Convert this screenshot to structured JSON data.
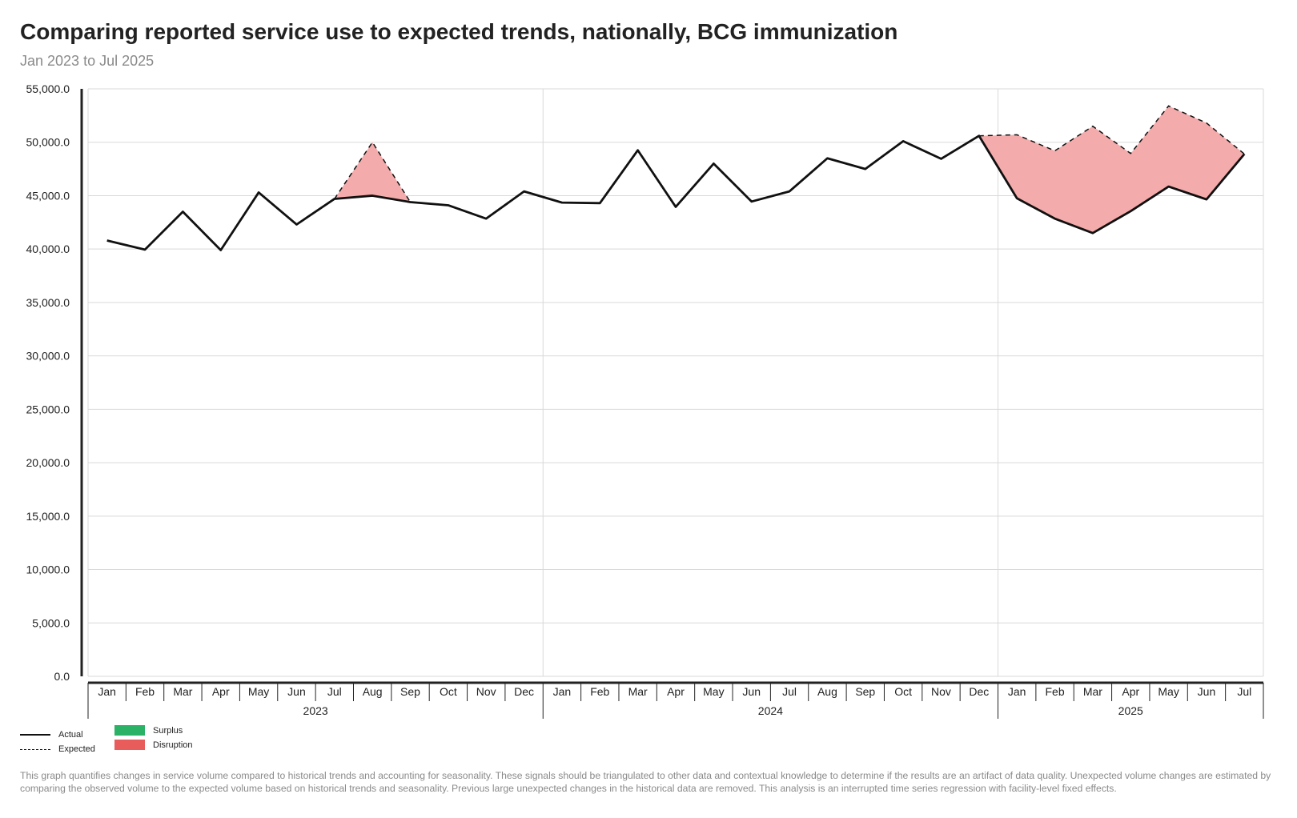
{
  "title": "Comparing reported service use to expected trends, nationally, BCG immunization",
  "subtitle": "Jan 2023 to Jul 2025",
  "legend": {
    "actual": "Actual",
    "expected": "Expected",
    "surplus": "Surplus",
    "disruption": "Disruption"
  },
  "colors": {
    "actual_line": "#111111",
    "expected_line": "#111111",
    "surplus": "#2bb266",
    "disruption": "#e85c5c",
    "disruption_fill": "#f4abab",
    "grid": "#d9d9d9"
  },
  "footnote": "This graph quantifies changes in service volume compared to historical trends and accounting for seasonality. These signals should be triangulated to other data and contextual knowledge to determine if the results are an artifact of data quality. Unexpected volume changes are estimated by comparing the observed volume to the expected volume based on historical trends and seasonality. Previous large unexpected changes in the historical data are removed. This analysis is an interrupted time series regression with facility-level fixed effects.",
  "chart_data": {
    "type": "line",
    "x": [
      "Jan",
      "Feb",
      "Mar",
      "Apr",
      "May",
      "Jun",
      "Jul",
      "Aug",
      "Sep",
      "Oct",
      "Nov",
      "Dec",
      "Jan",
      "Feb",
      "Mar",
      "Apr",
      "May",
      "Jun",
      "Jul",
      "Aug",
      "Sep",
      "Oct",
      "Nov",
      "Dec",
      "Jan",
      "Feb",
      "Mar",
      "Apr",
      "May",
      "Jun",
      "Jul"
    ],
    "x_groups": [
      {
        "label": "2023",
        "count": 12
      },
      {
        "label": "2024",
        "count": 12
      },
      {
        "label": "2025",
        "count": 7
      }
    ],
    "series": [
      {
        "name": "Actual",
        "style": "solid",
        "values": [
          40800,
          39950,
          43500,
          39900,
          45300,
          42300,
          44700,
          45000,
          44400,
          44100,
          42850,
          45400,
          44350,
          44300,
          49250,
          43950,
          48000,
          44450,
          45400,
          48500,
          47500,
          50100,
          48450,
          50600,
          44750,
          42850,
          41500,
          43550,
          45850,
          44650,
          48900
        ]
      },
      {
        "name": "Expected",
        "style": "dashed",
        "values": [
          null,
          null,
          null,
          null,
          null,
          null,
          44700,
          50000,
          44400,
          null,
          null,
          null,
          null,
          null,
          null,
          null,
          null,
          null,
          null,
          null,
          null,
          null,
          null,
          50600,
          50700,
          49200,
          51500,
          48950,
          53400,
          51800,
          48900
        ]
      }
    ],
    "disruption_ranges": [
      [
        6,
        8
      ],
      [
        23,
        30
      ]
    ],
    "y_ticks": [
      "0.0",
      "5,000.0",
      "10,000.0",
      "15,000.0",
      "20,000.0",
      "25,000.0",
      "30,000.0",
      "35,000.0",
      "40,000.0",
      "45,000.0",
      "50,000.0",
      "55,000.0"
    ],
    "ylim": [
      0,
      55000
    ],
    "grid": true,
    "legend_position": "bottom-left"
  }
}
